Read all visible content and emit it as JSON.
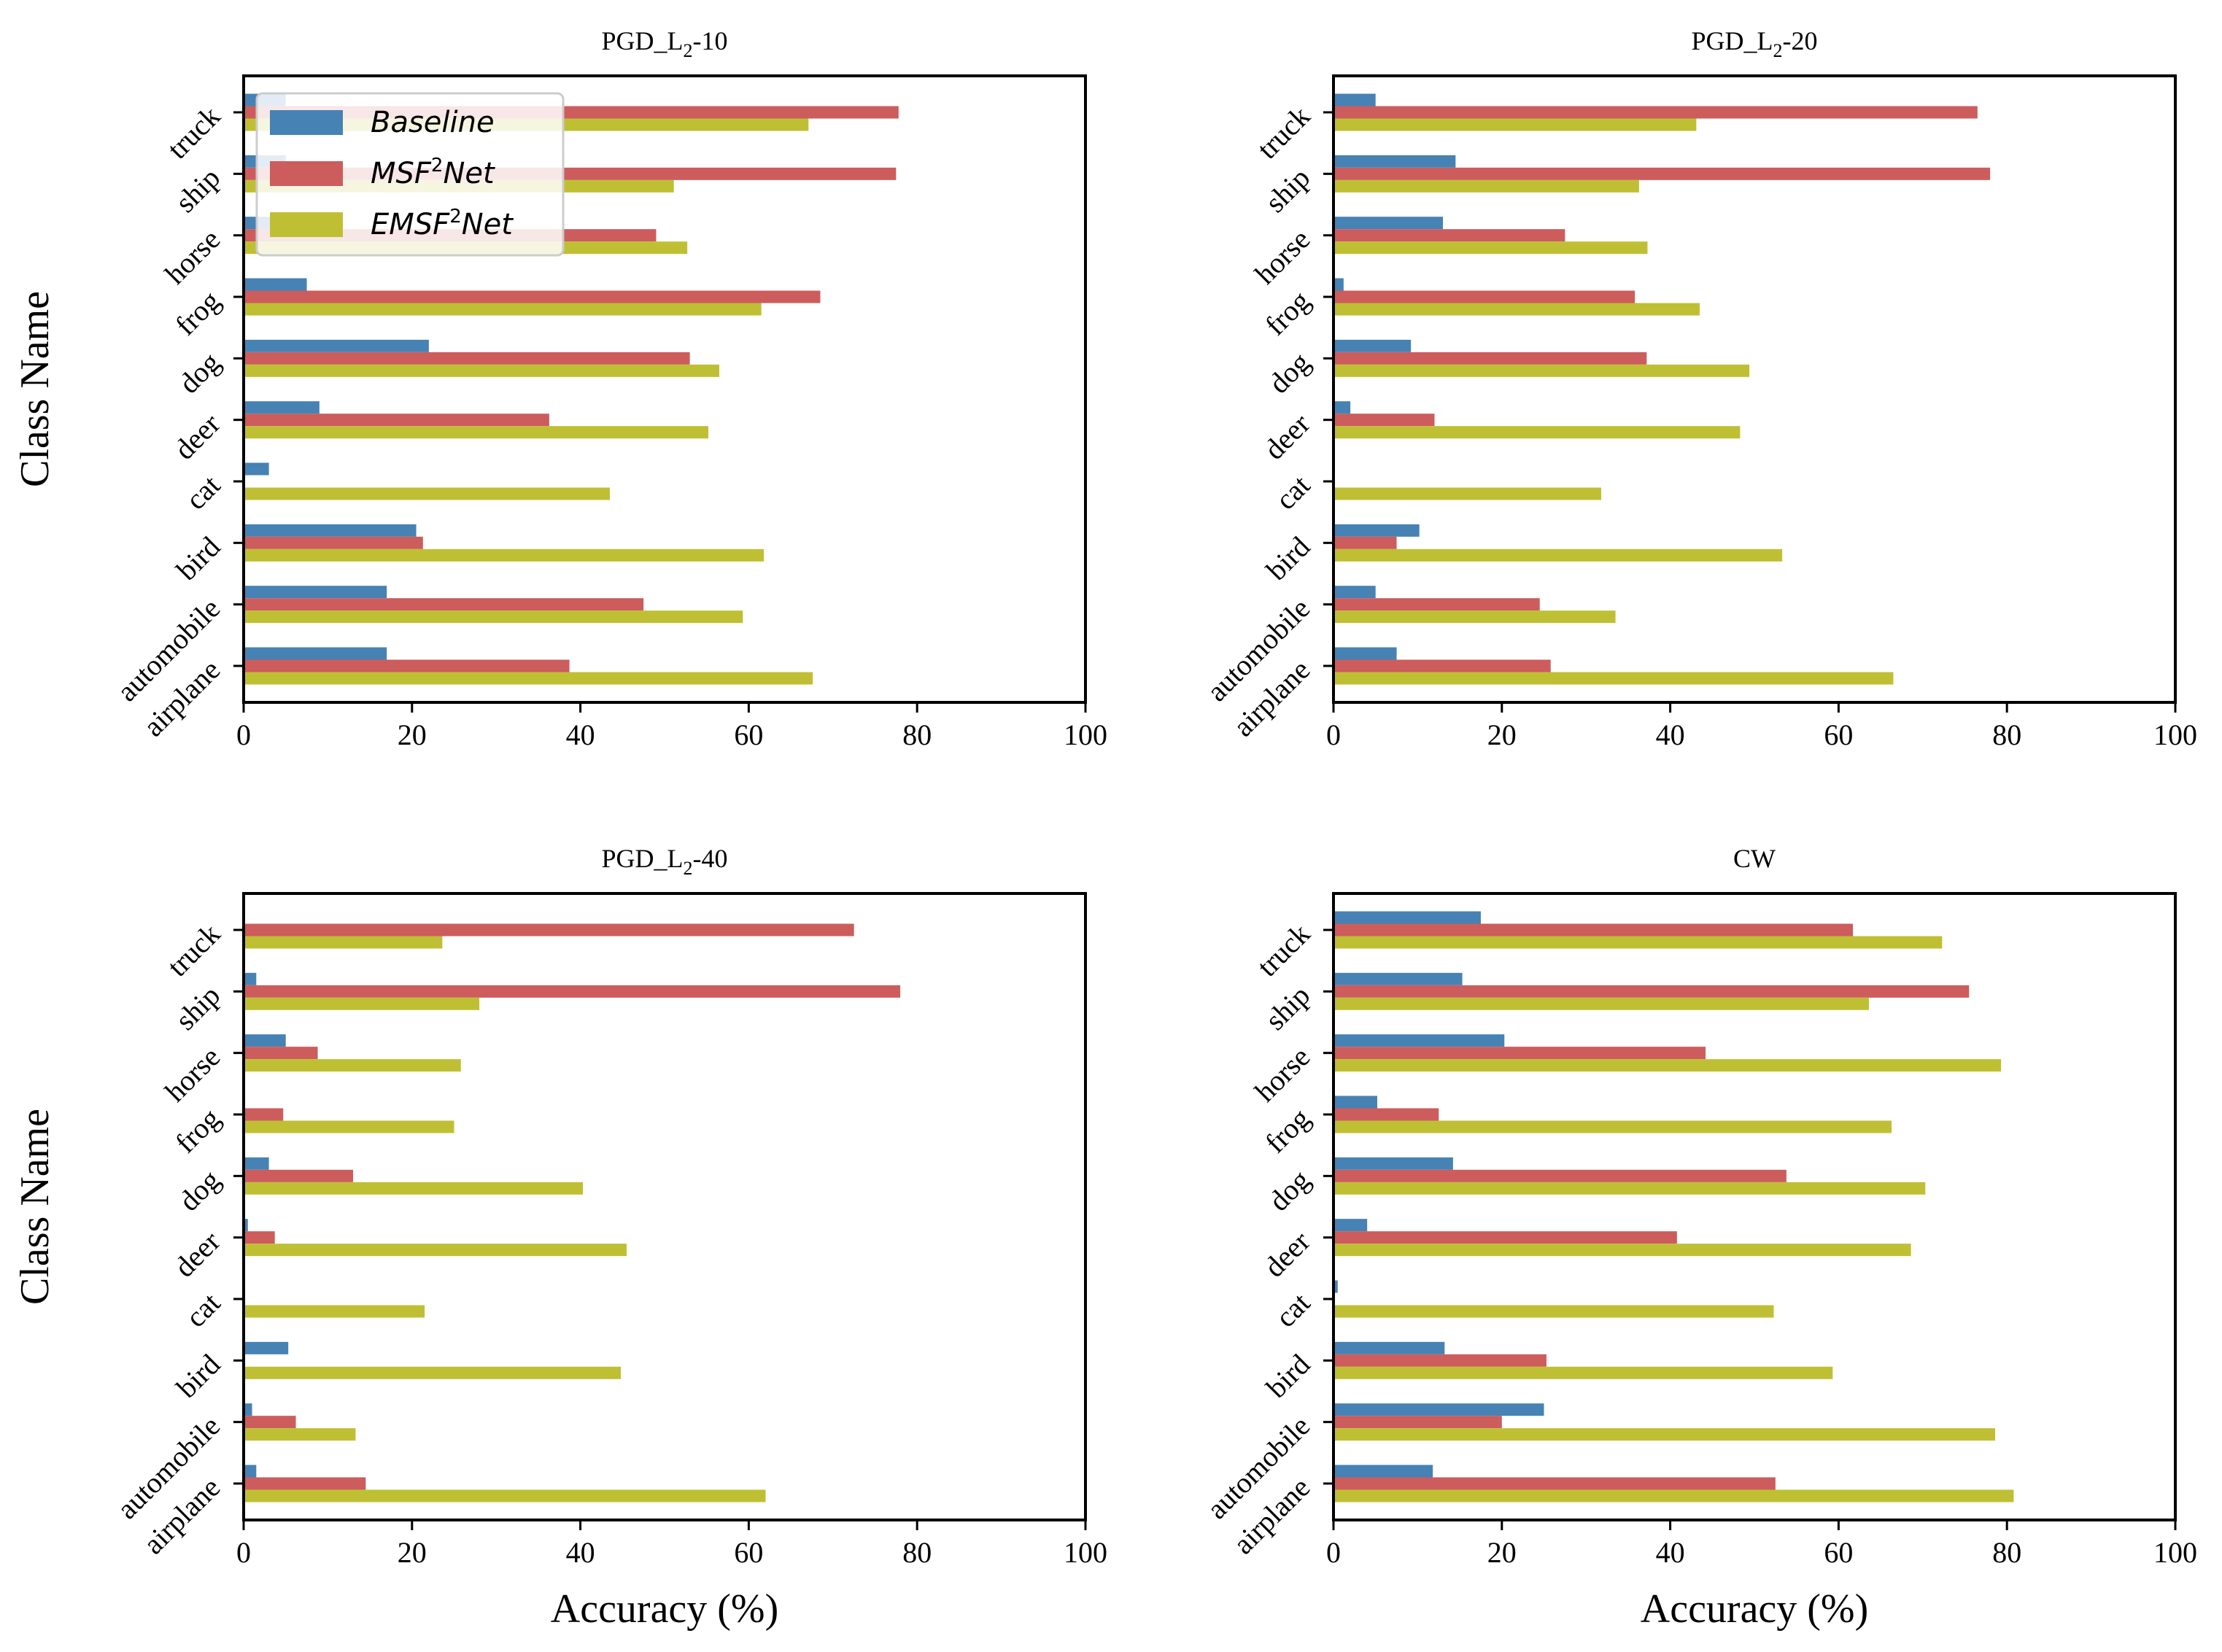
{
  "chart_data": [
    {
      "type": "bar",
      "orientation": "horizontal",
      "title_main": "PGD_L",
      "title_sub": "2",
      "title_suffix": "-10",
      "xlabel": "",
      "ylabel": "Class Name",
      "xlim": [
        0,
        100
      ],
      "xticks": [
        "0",
        "20",
        "40",
        "60",
        "80",
        "100"
      ],
      "categories": [
        "airplane",
        "automobile",
        "bird",
        "cat",
        "deer",
        "dog",
        "frog",
        "horse",
        "ship",
        "truck"
      ],
      "series": [
        {
          "name": "Baseline",
          "values": [
            17,
            17,
            20.5,
            3,
            9,
            22,
            7.5,
            5,
            5,
            5
          ]
        },
        {
          "name": "MSF2Net",
          "values": [
            38.7,
            47.5,
            21.3,
            0,
            36.3,
            53,
            68.5,
            49,
            77.5,
            77.8
          ]
        },
        {
          "name": "EMSF2Net",
          "values": [
            67.6,
            59.3,
            61.8,
            43.5,
            55.2,
            56.5,
            61.5,
            52.7,
            51.1,
            67.1
          ]
        }
      ],
      "legend": {
        "position": "top-left",
        "entries": [
          {
            "prefix": "Baseline",
            "sup": "",
            "suffix": ""
          },
          {
            "prefix": "MSF",
            "sup": "2",
            "suffix": "Net"
          },
          {
            "prefix": "EMSF",
            "sup": "2",
            "suffix": "Net"
          }
        ]
      }
    },
    {
      "type": "bar",
      "orientation": "horizontal",
      "title_main": "PGD_L",
      "title_sub": "2",
      "title_suffix": "-20",
      "xlabel": "",
      "ylabel": "",
      "xlim": [
        0,
        100
      ],
      "xticks": [
        "0",
        "20",
        "40",
        "60",
        "80",
        "100"
      ],
      "categories": [
        "airplane",
        "automobile",
        "bird",
        "cat",
        "deer",
        "dog",
        "frog",
        "horse",
        "ship",
        "truck"
      ],
      "series": [
        {
          "name": "Baseline",
          "values": [
            7.5,
            5,
            10.2,
            0,
            2,
            9.2,
            1.2,
            13,
            14.5,
            5
          ]
        },
        {
          "name": "MSF2Net",
          "values": [
            25.8,
            24.5,
            7.5,
            0,
            12,
            37.2,
            35.8,
            27.5,
            78,
            76.5
          ]
        },
        {
          "name": "EMSF2Net",
          "values": [
            66.5,
            33.5,
            53.3,
            31.8,
            48.3,
            49.4,
            43.5,
            37.3,
            36.3,
            43.1
          ]
        }
      ]
    },
    {
      "type": "bar",
      "orientation": "horizontal",
      "title_main": "PGD_L",
      "title_sub": "2",
      "title_suffix": "-40",
      "xlabel": "Accuracy (%)",
      "ylabel": "Class Name",
      "xlim": [
        0,
        100
      ],
      "xticks": [
        "0",
        "20",
        "40",
        "60",
        "80",
        "100"
      ],
      "categories": [
        "airplane",
        "automobile",
        "bird",
        "cat",
        "deer",
        "dog",
        "frog",
        "horse",
        "ship",
        "truck"
      ],
      "series": [
        {
          "name": "Baseline",
          "values": [
            1.5,
            1,
            5.3,
            0,
            0.5,
            3,
            0,
            5,
            1.5,
            0
          ]
        },
        {
          "name": "MSF2Net",
          "values": [
            14.5,
            6.2,
            0,
            0,
            3.7,
            13,
            4.7,
            8.8,
            78,
            72.5
          ]
        },
        {
          "name": "EMSF2Net",
          "values": [
            62,
            13.3,
            44.8,
            21.5,
            45.5,
            40.3,
            25,
            25.8,
            28,
            23.6
          ]
        }
      ]
    },
    {
      "type": "bar",
      "orientation": "horizontal",
      "title_main": "CW",
      "title_sub": "",
      "title_suffix": "",
      "xlabel": "Accuracy (%)",
      "ylabel": "",
      "xlim": [
        0,
        100
      ],
      "xticks": [
        "0",
        "20",
        "40",
        "60",
        "80",
        "100"
      ],
      "categories": [
        "airplane",
        "automobile",
        "bird",
        "cat",
        "deer",
        "dog",
        "frog",
        "horse",
        "ship",
        "truck"
      ],
      "series": [
        {
          "name": "Baseline",
          "values": [
            11.8,
            25,
            13.2,
            0.5,
            4,
            14.2,
            5.2,
            20.3,
            15.3,
            17.5
          ]
        },
        {
          "name": "MSF2Net",
          "values": [
            52.5,
            20,
            25.3,
            0,
            40.8,
            53.8,
            12.5,
            44.2,
            75.5,
            61.7
          ]
        },
        {
          "name": "EMSF2Net",
          "values": [
            80.8,
            78.6,
            59.3,
            52.3,
            68.6,
            70.3,
            66.3,
            79.3,
            63.6,
            72.3
          ]
        }
      ]
    }
  ],
  "colors": {
    "Baseline": "#4682b4",
    "MSF2Net": "#cd5c5c",
    "EMSF2Net": "#bfbf34"
  }
}
